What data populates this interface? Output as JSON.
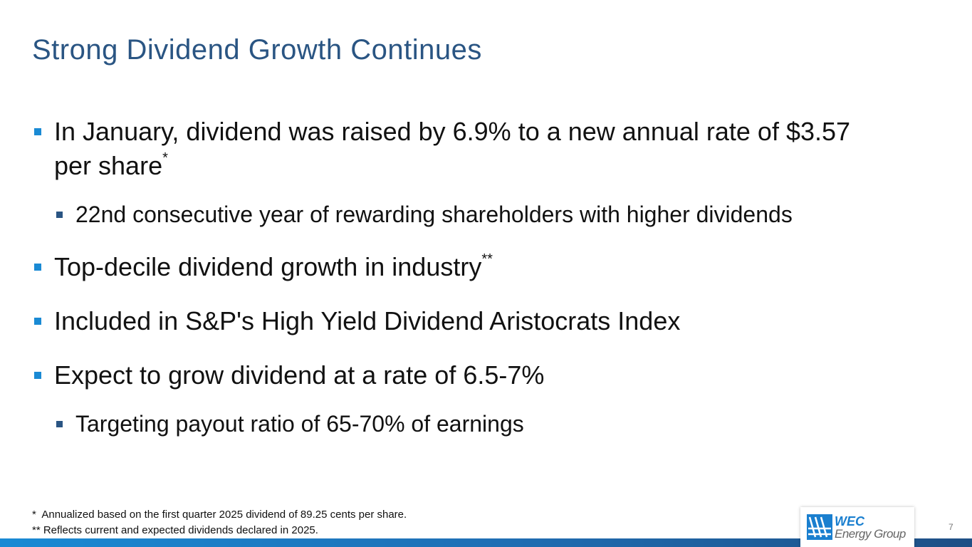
{
  "title": "Strong Dividend Growth Continues",
  "bullets": [
    {
      "text": "In January, dividend was raised by 6.9% to a new annual rate of $3.57 per share",
      "sup": "*",
      "sub": [
        "22nd consecutive year of rewarding shareholders with higher dividends"
      ]
    },
    {
      "text": "Top-decile dividend growth in industry",
      "sup": "**",
      "sub": []
    },
    {
      "text": "Included in S&P's High Yield Dividend Aristocrats Index",
      "sub": []
    },
    {
      "text": "Expect to grow dividend at a rate of 6.5-7%",
      "sub": [
        "Targeting payout ratio of 65-70% of earnings"
      ]
    }
  ],
  "footnotes": [
    "*  Annualized based on the first quarter 2025 dividend of 89.25 cents per share.",
    "** Reflects current and expected dividends declared in 2025."
  ],
  "logo": {
    "line1": "WEC",
    "line2": "Energy Group"
  },
  "page_number": "7"
}
